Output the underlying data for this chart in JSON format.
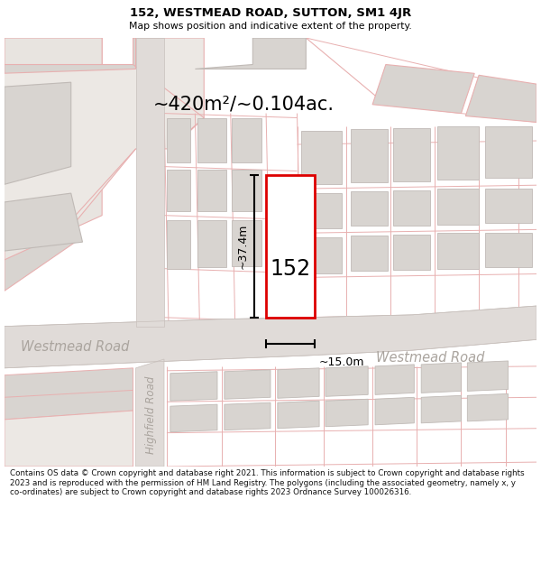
{
  "title": "152, WESTMEAD ROAD, SUTTON, SM1 4JR",
  "subtitle": "Map shows position and indicative extent of the property.",
  "area_text": "~420m²/~0.104ac.",
  "dim_width": "~15.0m",
  "dim_height": "~37.4m",
  "label_152": "152",
  "road_label_left": "Westmead Road",
  "road_label_right": "Westmead Road",
  "road_label_vert": "Highfield Road",
  "footer": "Contains OS data © Crown copyright and database right 2021. This information is subject to Crown copyright and database rights 2023 and is reproduced with the permission of HM Land Registry. The polygons (including the associated geometry, namely x, y co-ordinates) are subject to Crown copyright and database rights 2023 Ordnance Survey 100026316.",
  "bg_white": "#ffffff",
  "map_bg": "#ffffff",
  "road_fill": "#e0dbd8",
  "road_edge": "#c8c0bc",
  "bld_fill": "#d8d4d0",
  "bld_edge": "#c0bab6",
  "prop_line": "#dd0000",
  "prop_fill": "#ffffff",
  "pink": "#e8b0b0",
  "dim_color": "#000000",
  "road_text": "#aaa49e",
  "text_color": "#000000",
  "footer_color": "#111111"
}
